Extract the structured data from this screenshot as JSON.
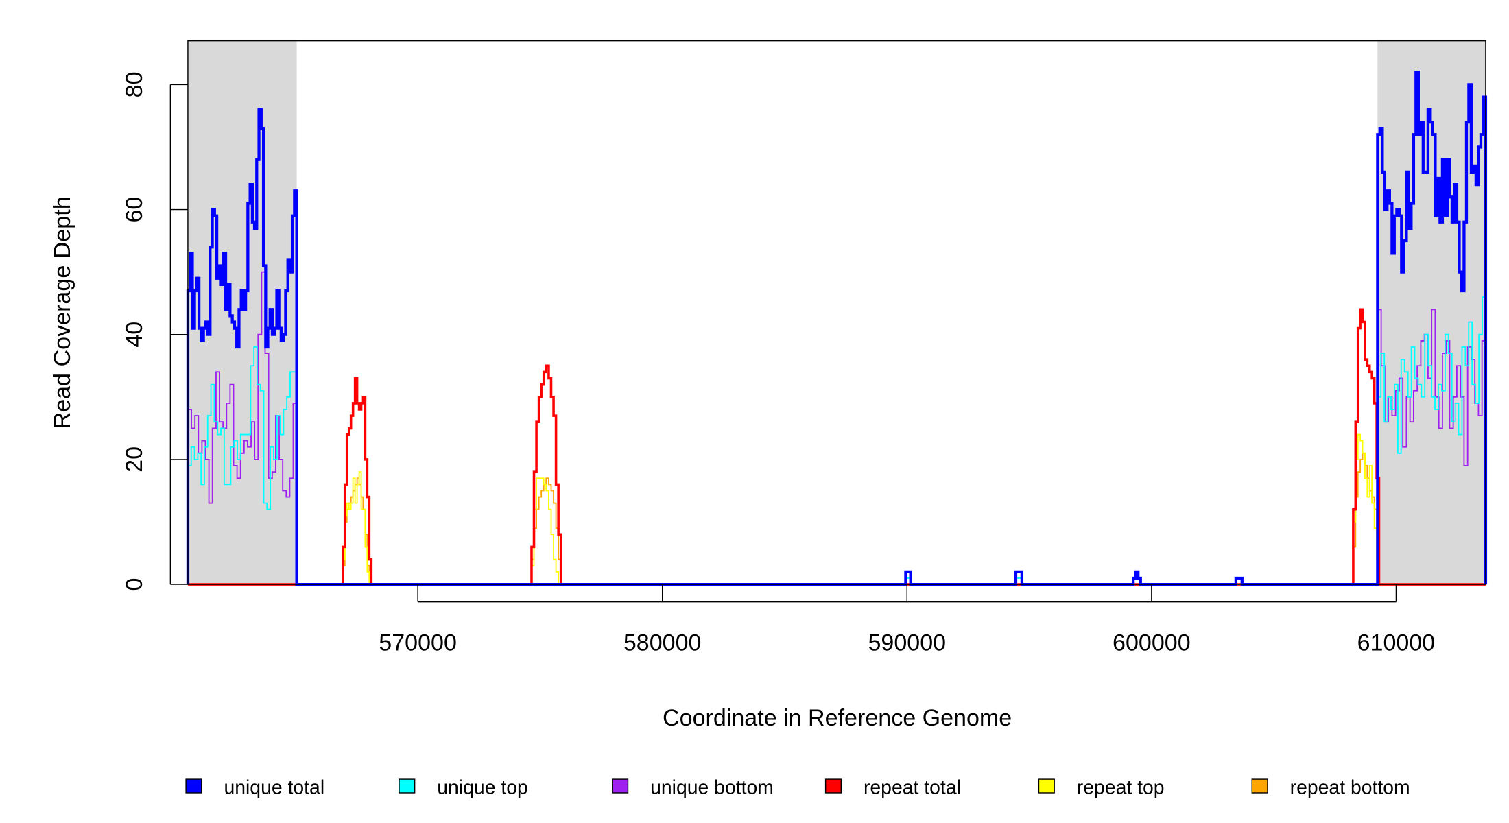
{
  "chart_data": {
    "type": "line",
    "title": "",
    "xlabel": "Coordinate in Reference Genome",
    "ylabel": "Read Coverage Depth",
    "xlim": [
      560600,
      613660
    ],
    "ylim": [
      0,
      87
    ],
    "grid": false,
    "legend_placement": "bottom",
    "shaded_regions": [
      [
        560600,
        565050
      ],
      [
        609240,
        613660
      ]
    ],
    "shade_color": "#d9d9d9",
    "x_ticks": [
      570000,
      580000,
      590000,
      600000,
      610000
    ],
    "x_tick_labels": [
      "570000",
      "580000",
      "590000",
      "600000",
      "610000"
    ],
    "y_ticks": [
      0,
      20,
      40,
      60,
      80
    ],
    "y_tick_labels": [
      "0",
      "20",
      "40",
      "60",
      "80"
    ],
    "series": [
      {
        "name": "repeat bottom",
        "color": "#ffa500",
        "segments": [
          {
            "start": 566850,
            "end": 568100,
            "values": [
              0,
              3,
              10,
              12,
              13,
              14,
              15,
              16,
              17,
              16,
              14,
              12,
              8,
              3,
              1
            ]
          },
          {
            "start": 574550,
            "end": 575850,
            "values": [
              0,
              4,
              9,
              12,
              14,
              15,
              16,
              17,
              16,
              15,
              13,
              9,
              4
            ]
          },
          {
            "start": 608150,
            "end": 609300,
            "values": [
              0,
              6,
              14,
              18,
              20,
              21,
              19,
              17,
              15,
              14,
              12,
              8
            ]
          }
        ]
      },
      {
        "name": "repeat top",
        "color": "#ffff00",
        "segments": [
          {
            "start": 566850,
            "end": 568100,
            "values": [
              0,
              4,
              11,
              13,
              12,
              13,
              17,
              13,
              16,
              18,
              12,
              12,
              6,
              2,
              0
            ]
          },
          {
            "start": 574550,
            "end": 575850,
            "values": [
              0,
              3,
              12,
              17,
              17,
              17,
              16,
              15,
              12,
              8,
              4,
              2,
              0
            ]
          },
          {
            "start": 608150,
            "end": 609300,
            "values": [
              0,
              10,
              20,
              24,
              23,
              21,
              17,
              14,
              19,
              13,
              9,
              4
            ]
          }
        ]
      },
      {
        "name": "repeat total",
        "color": "#ff0000",
        "segments": [
          {
            "start": 566850,
            "end": 568100,
            "values": [
              0,
              6,
              16,
              24,
              25,
              27,
              29,
              33,
              29,
              28,
              29,
              30,
              20,
              14,
              4
            ]
          },
          {
            "start": 574550,
            "end": 575850,
            "values": [
              0,
              6,
              18,
              26,
              30,
              32,
              34,
              35,
              33,
              30,
              27,
              16,
              8
            ]
          },
          {
            "start": 608150,
            "end": 609300,
            "values": [
              0,
              12,
              26,
              41,
              44,
              42,
              36,
              35,
              34,
              33,
              29,
              17
            ]
          }
        ]
      },
      {
        "name": "unique bottom",
        "color": "#a020f0",
        "segments": [
          {
            "start": 560600,
            "end": 565050,
            "values": [
              28,
              25,
              27,
              21,
              23,
              20,
              13,
              25,
              34,
              26,
              25,
              29,
              32,
              19,
              17,
              21,
              23,
              22,
              26,
              20,
              40,
              50,
              37,
              17,
              18,
              27,
              20,
              15,
              14,
              17,
              29
            ]
          },
          {
            "start": 589950,
            "end": 590150,
            "values": [
              2
            ]
          },
          {
            "start": 594450,
            "end": 594700,
            "values": [
              2
            ]
          },
          {
            "start": 599250,
            "end": 599550,
            "values": [
              1,
              2,
              1
            ]
          },
          {
            "start": 603450,
            "end": 603700,
            "values": [
              1
            ]
          },
          {
            "start": 609240,
            "end": 613660,
            "values": [
              44,
              35,
              26,
              30,
              27,
              31,
              33,
              22,
              30,
              26,
              31,
              35,
              39,
              40,
              33,
              44,
              30,
              25,
              37,
              39,
              25,
              30,
              35,
              30,
              19,
              38,
              36,
              29,
              27,
              39
            ]
          }
        ]
      },
      {
        "name": "unique top",
        "color": "#00ffff",
        "segments": [
          {
            "start": 560600,
            "end": 565050,
            "values": [
              19,
              22,
              20,
              21,
              16,
              22,
              27,
              32,
              26,
              24,
              25,
              16,
              16,
              22,
              23,
              20,
              24,
              24,
              24,
              35,
              38,
              32,
              31,
              13,
              12,
              22,
              20,
              27,
              24,
              28,
              30,
              34,
              34
            ]
          },
          {
            "start": 589950,
            "end": 590150,
            "values": [
              1
            ]
          },
          {
            "start": 594450,
            "end": 594700,
            "values": [
              1
            ]
          },
          {
            "start": 599250,
            "end": 599550,
            "values": [
              1,
              1,
              1
            ]
          },
          {
            "start": 609240,
            "end": 613660,
            "values": [
              30,
              37,
              26,
              30,
              28,
              32,
              21,
              36,
              34,
              30,
              38,
              33,
              32,
              30,
              40,
              35,
              30,
              28,
              32,
              31,
              40,
              37,
              26,
              29,
              24,
              38,
              35,
              42,
              32,
              29,
              40,
              46
            ]
          }
        ]
      },
      {
        "name": "unique total",
        "color": "#0000ff",
        "segments": [
          {
            "start": 560600,
            "end": 565050,
            "values": [
              47,
              53,
              41,
              47,
              49,
              41,
              39,
              41,
              42,
              40,
              54,
              60,
              59,
              49,
              51,
              48,
              53,
              44,
              48,
              43,
              42,
              41,
              38,
              44,
              47,
              44,
              47,
              61,
              64,
              58,
              57,
              68,
              76,
              73,
              51,
              38,
              41,
              44,
              40,
              41,
              47,
              41,
              39,
              40,
              47,
              52,
              50,
              59,
              63
            ]
          },
          {
            "start": 589950,
            "end": 590150,
            "values": [
              2
            ]
          },
          {
            "start": 594450,
            "end": 594700,
            "values": [
              2
            ]
          },
          {
            "start": 599250,
            "end": 599550,
            "values": [
              1,
              2,
              1
            ]
          },
          {
            "start": 603450,
            "end": 603700,
            "values": [
              1
            ]
          },
          {
            "start": 609240,
            "end": 613660,
            "values": [
              72,
              73,
              66,
              60,
              63,
              61,
              53,
              59,
              60,
              59,
              50,
              55,
              66,
              57,
              61,
              72,
              82,
              72,
              74,
              66,
              66,
              76,
              74,
              72,
              59,
              65,
              58,
              68,
              59,
              68,
              62,
              58,
              64,
              58,
              50,
              47,
              58,
              74,
              80,
              66,
              67,
              64,
              70,
              72,
              78
            ]
          }
        ]
      }
    ],
    "legend": [
      {
        "label": "unique total",
        "color": "#0000ff"
      },
      {
        "label": "unique top",
        "color": "#00ffff"
      },
      {
        "label": "unique bottom",
        "color": "#a020f0"
      },
      {
        "label": "repeat total",
        "color": "#ff0000"
      },
      {
        "label": "repeat top",
        "color": "#ffff00"
      },
      {
        "label": "repeat bottom",
        "color": "#ffa500"
      }
    ]
  }
}
